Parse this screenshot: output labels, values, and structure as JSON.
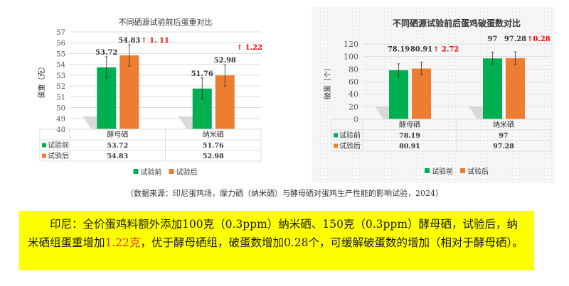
{
  "chart_data": [
    {
      "type": "bar",
      "title": "不同硒源试验前后蛋重对比",
      "ylabel": "蛋重（克）",
      "ylim": [
        48,
        57
      ],
      "yticks": [
        48,
        49,
        50,
        51,
        52,
        53,
        54,
        55,
        56,
        57
      ],
      "grid": true,
      "legend_position": "bottom",
      "categories": [
        "酵母硒",
        "纳米硒"
      ],
      "series": [
        {
          "name": "试验前",
          "values": [
            53.72,
            51.76
          ],
          "color": "#00b050"
        },
        {
          "name": "试验后",
          "values": [
            54.83,
            52.98
          ],
          "color": "#ed7d31"
        }
      ],
      "data_labels": [
        [
          "53.72",
          "51.76"
        ],
        [
          "54.83",
          "52.98"
        ]
      ],
      "annotations": [
        "↑ 1. 11",
        "↑ 1.22"
      ],
      "data_table": true
    },
    {
      "type": "bar",
      "title": "不同硒源试验前后蛋鸡破蛋数对比",
      "ylabel": "破蛋（个）",
      "ylim": [
        0,
        120
      ],
      "yticks": [
        0,
        20,
        40,
        60,
        80,
        100,
        120
      ],
      "grid": true,
      "legend_position": "bottom",
      "categories": [
        "酵母硒",
        "纳米硒"
      ],
      "series": [
        {
          "name": "试验前",
          "values": [
            78.19,
            97
          ],
          "color": "#00b050"
        },
        {
          "name": "试验后",
          "values": [
            80.91,
            97.28
          ],
          "color": "#ed7d31"
        }
      ],
      "data_labels": [
        [
          "78.19",
          "97"
        ],
        [
          "80.91",
          "97.28"
        ]
      ],
      "annotations": [
        "↑ 2.72",
        "↑0.28"
      ],
      "data_table": true
    }
  ],
  "caption": "（数据来源：印尼蛋鸡场，摩力硒（纳米硒）与酵母硒对蛋鸡生产性能的影响试验，2024）",
  "note": {
    "p1": "印尼：全价蛋鸡料额外添加100克（0.3ppm）纳米硒、150克（0.3ppm）酵母硒，试验后，纳米硒组蛋重增加",
    "highlight": "1.22克",
    "p2": "，优于酵母硒组，破蛋数增加0.28个，可缓解破蛋数的增加（相对于酵母硒）。"
  }
}
